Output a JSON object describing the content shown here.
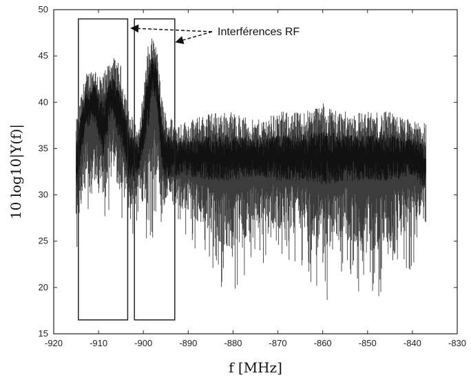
{
  "chart_data": {
    "type": "line",
    "xlabel": "f [MHz]",
    "ylabel": "10 log10|Y(f)|",
    "xlim": [
      -920,
      -830
    ],
    "ylim": [
      15,
      50
    ],
    "x_ticks": [
      -920,
      -910,
      -900,
      -890,
      -880,
      -870,
      -860,
      -850,
      -840,
      -830
    ],
    "y_ticks": [
      15,
      20,
      25,
      30,
      35,
      40,
      45,
      50
    ],
    "grid": false,
    "line_color": "#1a1a1a",
    "series": [
      {
        "x": [
          -915,
          -913,
          -911,
          -909,
          -907,
          -905,
          -903,
          -901,
          -899,
          -898,
          -897,
          -896,
          -895,
          -893,
          -890,
          -885,
          -880,
          -875,
          -870,
          -865,
          -860,
          -855,
          -850,
          -845,
          -840,
          -837
        ],
        "y_max": [
          38,
          43,
          44,
          43,
          45,
          44,
          39,
          37,
          46,
          47,
          46,
          41,
          39,
          38,
          38,
          39,
          39,
          38,
          39,
          39,
          40,
          39,
          39,
          39,
          38,
          38
        ],
        "y_min": [
          23,
          25,
          27,
          26,
          28,
          26,
          25,
          27,
          22,
          25,
          27,
          23,
          27,
          26,
          25,
          21,
          18,
          23,
          22,
          22,
          18,
          21,
          18,
          20,
          22,
          27
        ],
        "y_mean": [
          33,
          39,
          40,
          37,
          41,
          38,
          34,
          34,
          40,
          43,
          42,
          36,
          34,
          34,
          34,
          34,
          34,
          34,
          34,
          34,
          34,
          34,
          34,
          34,
          34,
          33
        ]
      }
    ],
    "annotations": [
      {
        "text": "Interférences RF",
        "from_x": -893,
        "from_y": 46.5
      },
      {
        "text": "Interférences RF",
        "from_x": -903,
        "from_y": 48.0
      }
    ],
    "rect_regions": [
      {
        "x0": -914.5,
        "x1": -903.5,
        "y0": 16.5,
        "y1": 49
      },
      {
        "x0": -902,
        "x1": -893,
        "y0": 16.5,
        "y1": 49
      }
    ]
  },
  "labels": {
    "annotation_text": "Interférences RF",
    "xlabel_text": "f [MHz]",
    "ylabel_text": "10 log10|Y(f)|"
  }
}
